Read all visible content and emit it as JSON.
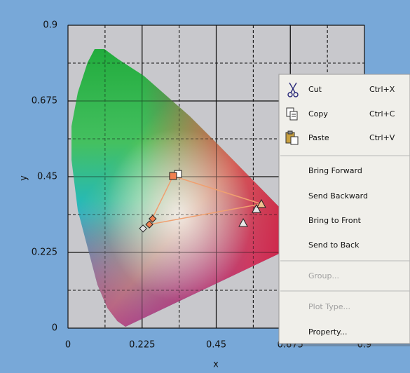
{
  "chart_data": {
    "type": "scatter",
    "x_label": "x",
    "y_label": "y",
    "xlim": [
      0,
      0.9
    ],
    "ylim": [
      0,
      0.9
    ],
    "xticks": [
      0,
      0.225,
      0.45,
      0.675,
      0.9
    ],
    "yticks": [
      0,
      0.225,
      0.45,
      0.675,
      0.9
    ],
    "minor_grid": [
      0.1125,
      0.3375,
      0.5625,
      0.7875
    ],
    "grid": true,
    "series": [
      {
        "mode": "line",
        "color": "#f0a070",
        "x": [
          0.319,
          0.587,
          0.247,
          0.319
        ],
        "y": [
          0.452,
          0.369,
          0.308,
          0.452
        ]
      },
      {
        "mode": "marker",
        "marker": "square",
        "color": "#ffffff",
        "x": [
          0.334
        ],
        "y": [
          0.458
        ]
      },
      {
        "mode": "marker",
        "marker": "square",
        "color": "#f08050",
        "x": [
          0.319
        ],
        "y": [
          0.452
        ]
      },
      {
        "mode": "marker",
        "marker": "diamond",
        "color": "#e0e0e0",
        "x": [
          0.228
        ],
        "y": [
          0.296
        ]
      },
      {
        "mode": "marker",
        "marker": "diamond",
        "color": "#f08050",
        "x": [
          0.247,
          0.257
        ],
        "y": [
          0.308,
          0.325
        ]
      },
      {
        "mode": "marker",
        "marker": "triangle",
        "color": "#e8e8e8",
        "x": [
          0.532,
          0.572
        ],
        "y": [
          0.3125,
          0.354
        ]
      },
      {
        "mode": "marker",
        "marker": "triangle",
        "color": "#f0c090",
        "x": [
          0.587
        ],
        "y": [
          0.369
        ]
      }
    ]
  },
  "context_menu": {
    "items": [
      {
        "label": "Cut",
        "shortcut": "Ctrl+X"
      },
      {
        "label": "Copy",
        "shortcut": "Ctrl+C"
      },
      {
        "label": "Paste",
        "shortcut": "Ctrl+V"
      },
      {
        "label": "Bring Forward"
      },
      {
        "label": "Send Backward"
      },
      {
        "label": "Bring to Front"
      },
      {
        "label": "Send to Back"
      },
      {
        "label": "Group...",
        "disabled": true
      },
      {
        "label": "Plot Type...",
        "disabled": true
      },
      {
        "label": "Property..."
      }
    ]
  }
}
